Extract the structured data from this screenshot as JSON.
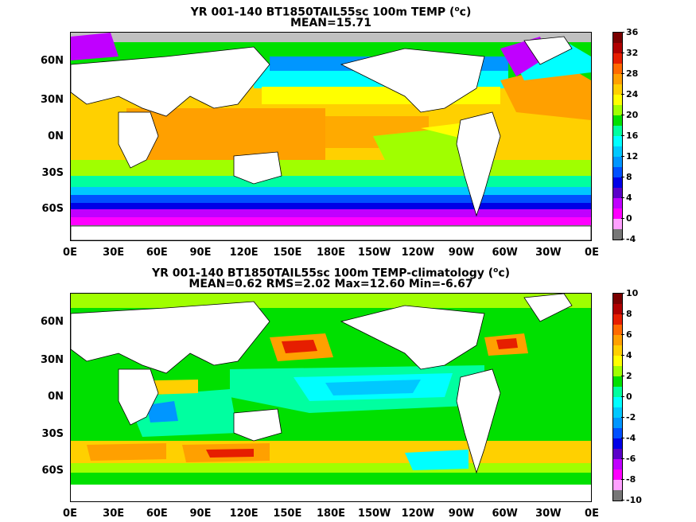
{
  "top_panel": {
    "title_pre": "YR 001-140 BT1850TAIL55sc 100m TEMP (",
    "title_sup": "o",
    "title_post": "c)",
    "subtitle": "MEAN=15.71",
    "colorbar_labels": [
      "36",
      "32",
      "28",
      "24",
      "20",
      "16",
      "12",
      "8",
      "4",
      "0",
      "-4"
    ],
    "colorbar_colors": [
      "#7a0000",
      "#b00000",
      "#e61e00",
      "#ff6a00",
      "#ffa000",
      "#ffd000",
      "#ffff00",
      "#a0ff00",
      "#00e000",
      "#00ffa0",
      "#00ffff",
      "#00c8ff",
      "#0096ff",
      "#0050ff",
      "#0000e6",
      "#5a00c8",
      "#c000ff",
      "#ff00ff",
      "#ffa0ff",
      "#777777"
    ]
  },
  "bottom_panel": {
    "title_pre": "YR 001-140 BT1850TAIL55sc 100m TEMP-climatology (",
    "title_sup": "o",
    "title_post": "c)",
    "subtitle": "MEAN=0.62   RMS=2.02   Max=12.60   Min=-6.67",
    "colorbar_labels": [
      "10",
      "8",
      "6",
      "4",
      "2",
      "0",
      "-2",
      "-4",
      "-6",
      "-8",
      "-10"
    ],
    "colorbar_colors": [
      "#7a0000",
      "#b00000",
      "#e61e00",
      "#ff6a00",
      "#ffa000",
      "#ffd000",
      "#ffff00",
      "#a0ff00",
      "#00e000",
      "#00ffa0",
      "#00ffff",
      "#00c8ff",
      "#0096ff",
      "#0050ff",
      "#0000e6",
      "#5a00c8",
      "#c000ff",
      "#ff00ff",
      "#ffa0ff",
      "#777777"
    ]
  },
  "lat_labels": [
    "60N",
    "30N",
    "0N",
    "30S",
    "60S"
  ],
  "lon_labels": [
    "0E",
    "30E",
    "60E",
    "90E",
    "120E",
    "150E",
    "180E",
    "150W",
    "120W",
    "90W",
    "60W",
    "30W",
    "0E"
  ]
}
